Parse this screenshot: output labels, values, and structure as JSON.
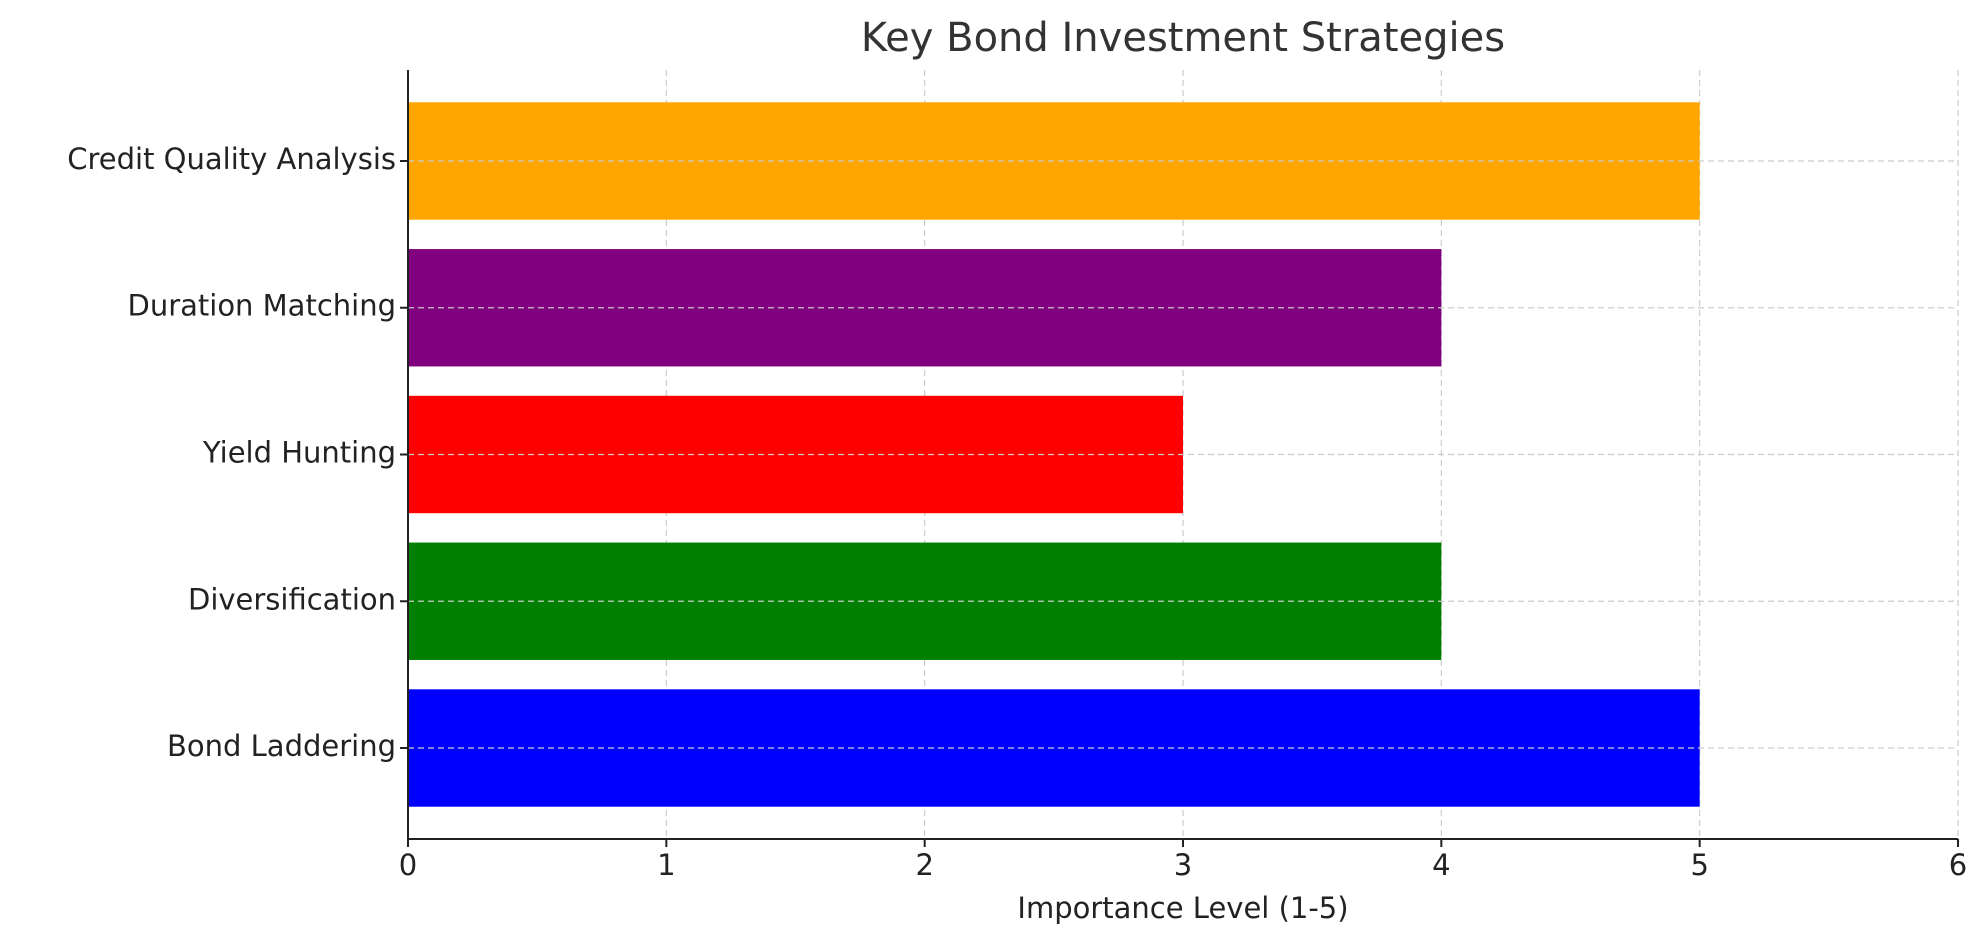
{
  "chart_data": {
    "type": "barh",
    "title": "Key Bond Investment Strategies",
    "categories": [
      "Bond Laddering",
      "Diversification",
      "Yield Hunting",
      "Duration Matching",
      "Credit Quality Analysis"
    ],
    "values": [
      5,
      4,
      3,
      4,
      5
    ],
    "colors": [
      "#0000ff",
      "#008000",
      "#ff0000",
      "#800080",
      "#ffa500"
    ],
    "x_label": "Importance Level (1-5)",
    "xlim": [
      0,
      6
    ],
    "xticks": [
      0,
      1,
      2,
      3,
      4,
      5,
      6
    ],
    "grid": true
  }
}
